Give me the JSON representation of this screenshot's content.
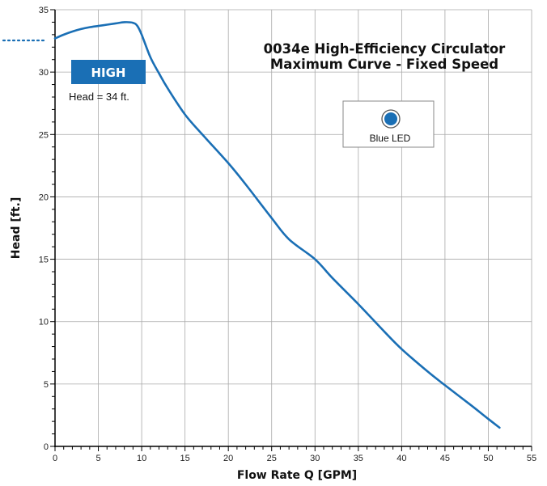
{
  "chart_data": {
    "type": "line",
    "title": [
      "0034e High-Efficiency Circulator",
      "Maximum Curve - Fixed Speed"
    ],
    "xlabel": "Flow Rate Q [GPM]",
    "ylabel": "Head [ft.]",
    "xlim": [
      0,
      55
    ],
    "ylim": [
      0,
      35
    ],
    "xticks": [
      "0",
      "5",
      "10",
      "15",
      "20",
      "25",
      "30",
      "35",
      "40",
      "45",
      "50",
      "55"
    ],
    "yticks": [
      "0",
      "5",
      "10",
      "15",
      "20",
      "25",
      "30",
      "35"
    ],
    "grid": true,
    "series": [
      {
        "color": "#1a6fb5",
        "x": [
          0,
          1,
          2,
          3,
          4,
          5,
          6,
          7,
          8,
          9,
          9.5,
          10,
          11,
          12,
          13,
          15,
          17,
          20,
          22,
          25,
          27,
          30,
          32,
          35,
          38,
          40,
          43,
          45,
          48,
          50,
          51.3
        ],
        "y": [
          32.7,
          33.0,
          33.25,
          33.45,
          33.6,
          33.7,
          33.8,
          33.9,
          34.0,
          33.95,
          33.7,
          33.0,
          31.2,
          29.9,
          28.7,
          26.6,
          25.0,
          22.7,
          21.0,
          18.3,
          16.6,
          15.0,
          13.5,
          11.4,
          9.2,
          7.8,
          6.0,
          4.9,
          3.3,
          2.2,
          1.5
        ]
      }
    ],
    "annotations": {
      "badge": "HIGH",
      "head_note": "Head = 34 ft."
    },
    "legend": {
      "label": "Blue LED",
      "color": "#1a6fb5",
      "position": "top-right"
    }
  }
}
